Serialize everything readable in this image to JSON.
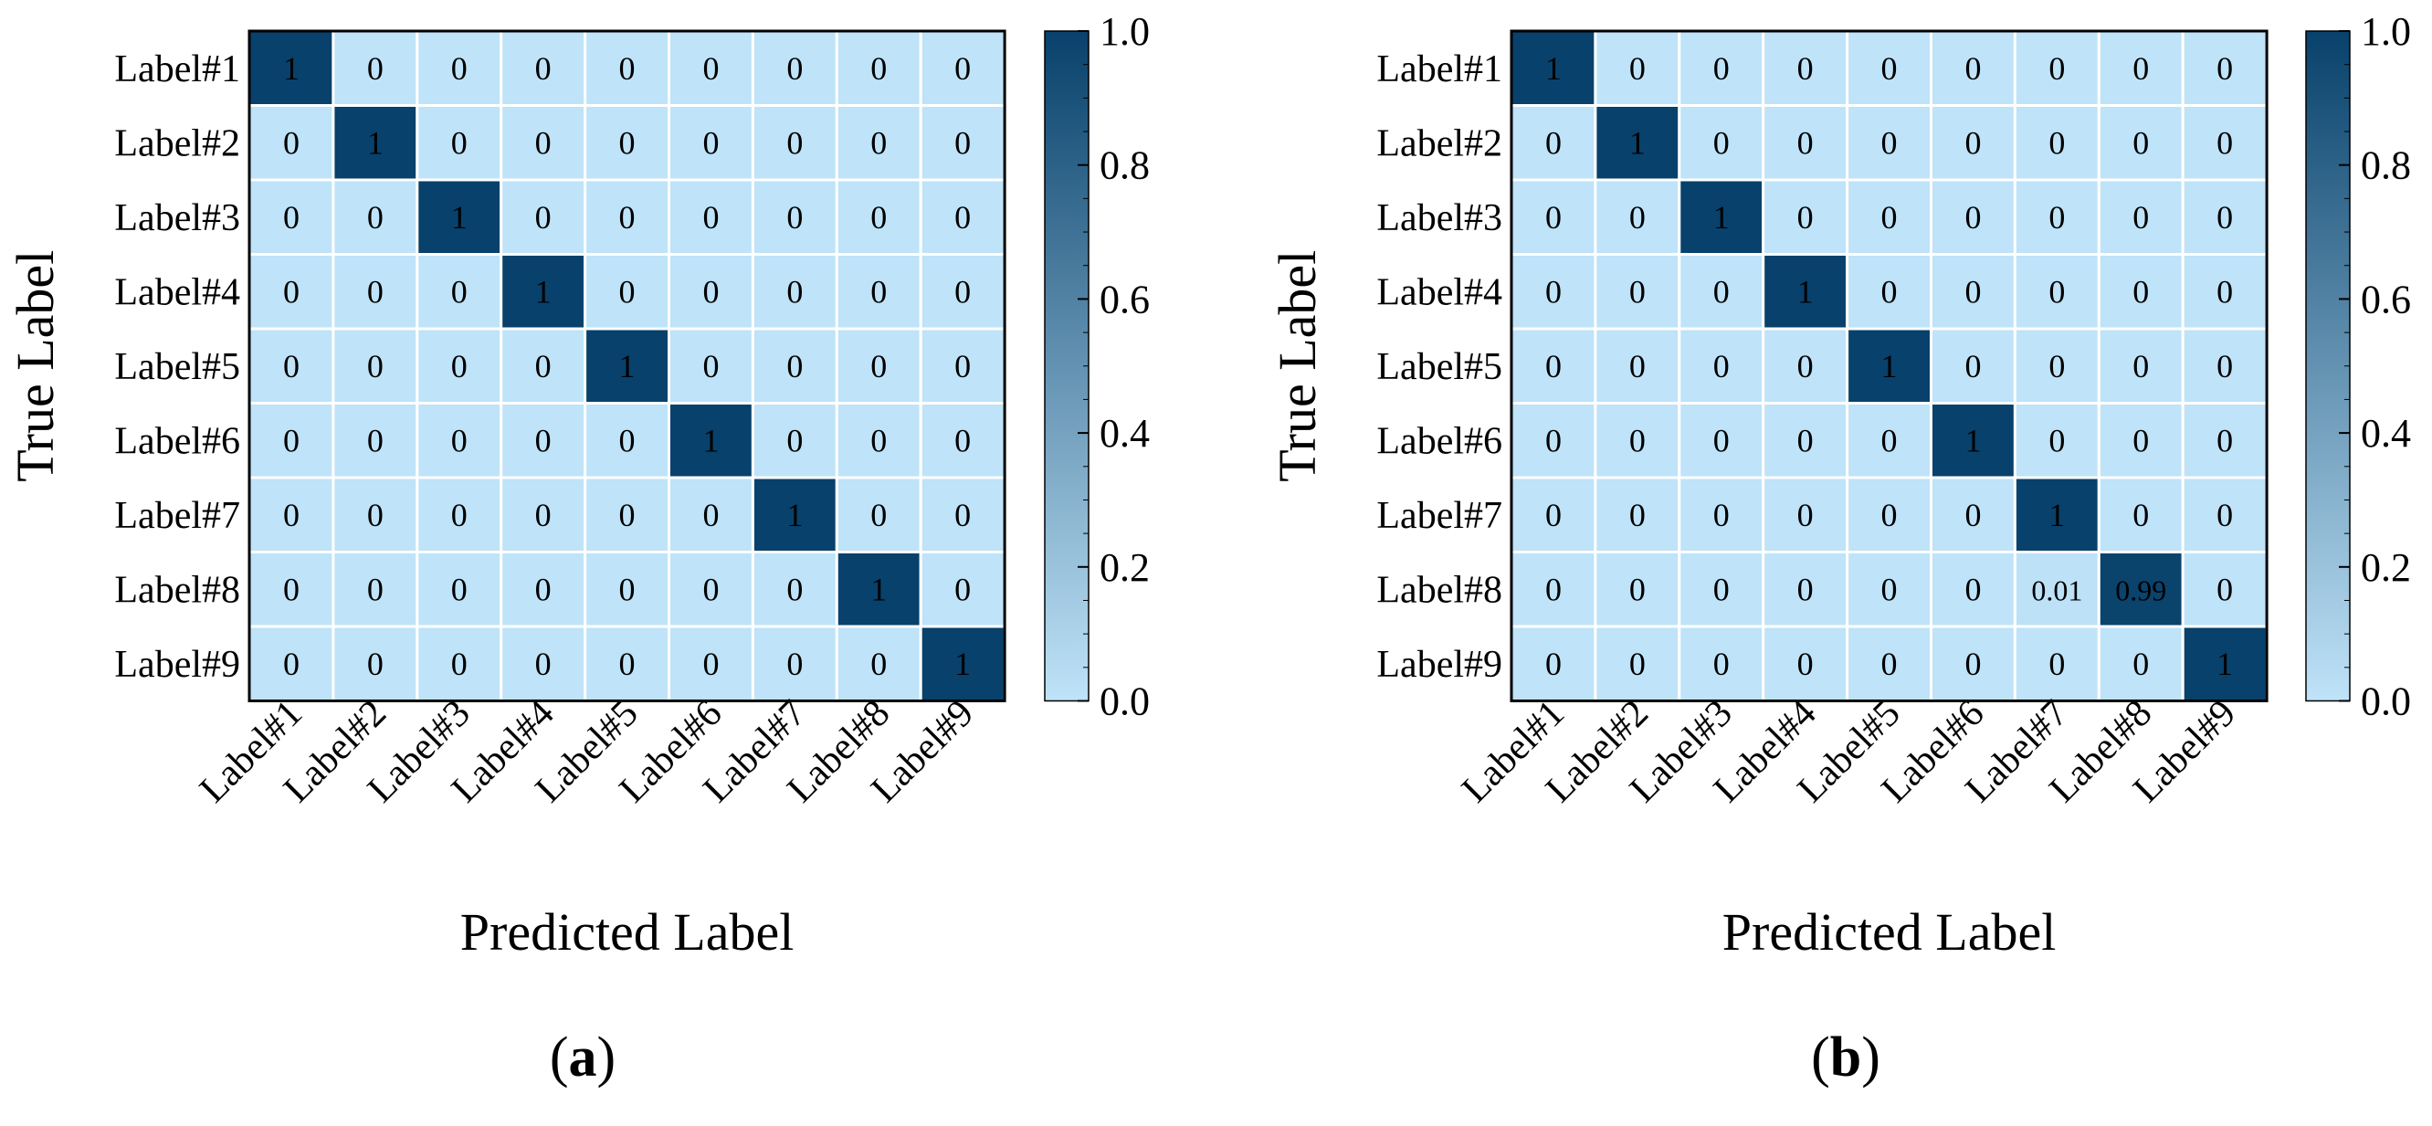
{
  "chart_data": [
    {
      "type": "heatmap",
      "panel_label": "a",
      "xlabel": "Predicted Label",
      "ylabel": "True Label",
      "x_categories": [
        "Label#1",
        "Label#2",
        "Label#3",
        "Label#4",
        "Label#5",
        "Label#6",
        "Label#7",
        "Label#8",
        "Label#9"
      ],
      "y_categories": [
        "Label#1",
        "Label#2",
        "Label#3",
        "Label#4",
        "Label#5",
        "Label#6",
        "Label#7",
        "Label#8",
        "Label#9"
      ],
      "values": [
        [
          1,
          0,
          0,
          0,
          0,
          0,
          0,
          0,
          0
        ],
        [
          0,
          1,
          0,
          0,
          0,
          0,
          0,
          0,
          0
        ],
        [
          0,
          0,
          1,
          0,
          0,
          0,
          0,
          0,
          0
        ],
        [
          0,
          0,
          0,
          1,
          0,
          0,
          0,
          0,
          0
        ],
        [
          0,
          0,
          0,
          0,
          1,
          0,
          0,
          0,
          0
        ],
        [
          0,
          0,
          0,
          0,
          0,
          1,
          0,
          0,
          0
        ],
        [
          0,
          0,
          0,
          0,
          0,
          0,
          1,
          0,
          0
        ],
        [
          0,
          0,
          0,
          0,
          0,
          0,
          0,
          1,
          0
        ],
        [
          0,
          0,
          0,
          0,
          0,
          0,
          0,
          0,
          1
        ]
      ],
      "colorbar": {
        "range": [
          0.0,
          1.0
        ],
        "ticks": [
          0.0,
          0.2,
          0.4,
          0.6,
          0.8,
          1.0
        ],
        "tick_labels": [
          "0.0",
          "0.2",
          "0.4",
          "0.6",
          "0.8",
          "1.0"
        ]
      }
    },
    {
      "type": "heatmap",
      "panel_label": "b",
      "xlabel": "Predicted Label",
      "ylabel": "True Label",
      "x_categories": [
        "Label#1",
        "Label#2",
        "Label#3",
        "Label#4",
        "Label#5",
        "Label#6",
        "Label#7",
        "Label#8",
        "Label#9"
      ],
      "y_categories": [
        "Label#1",
        "Label#2",
        "Label#3",
        "Label#4",
        "Label#5",
        "Label#6",
        "Label#7",
        "Label#8",
        "Label#9"
      ],
      "values": [
        [
          1,
          0,
          0,
          0,
          0,
          0,
          0,
          0,
          0
        ],
        [
          0,
          1,
          0,
          0,
          0,
          0,
          0,
          0,
          0
        ],
        [
          0,
          0,
          1,
          0,
          0,
          0,
          0,
          0,
          0
        ],
        [
          0,
          0,
          0,
          1,
          0,
          0,
          0,
          0,
          0
        ],
        [
          0,
          0,
          0,
          0,
          1,
          0,
          0,
          0,
          0
        ],
        [
          0,
          0,
          0,
          0,
          0,
          1,
          0,
          0,
          0
        ],
        [
          0,
          0,
          0,
          0,
          0,
          0,
          1,
          0,
          0
        ],
        [
          0,
          0,
          0,
          0,
          0,
          0,
          0.01,
          0.99,
          0
        ],
        [
          0,
          0,
          0,
          0,
          0,
          0,
          0,
          0,
          1
        ]
      ],
      "colorbar": {
        "range": [
          0.0,
          1.0
        ],
        "ticks": [
          0.0,
          0.2,
          0.4,
          0.6,
          0.8,
          1.0
        ],
        "tick_labels": [
          "0.0",
          "0.2",
          "0.4",
          "0.6",
          "0.8",
          "1.0"
        ]
      }
    }
  ],
  "colors": {
    "low": "#bfe3f8",
    "high": "#08416b",
    "grid": "#ffffff",
    "frame": "#000000",
    "dark_text": "#000000",
    "light_text": "#ffffff"
  }
}
